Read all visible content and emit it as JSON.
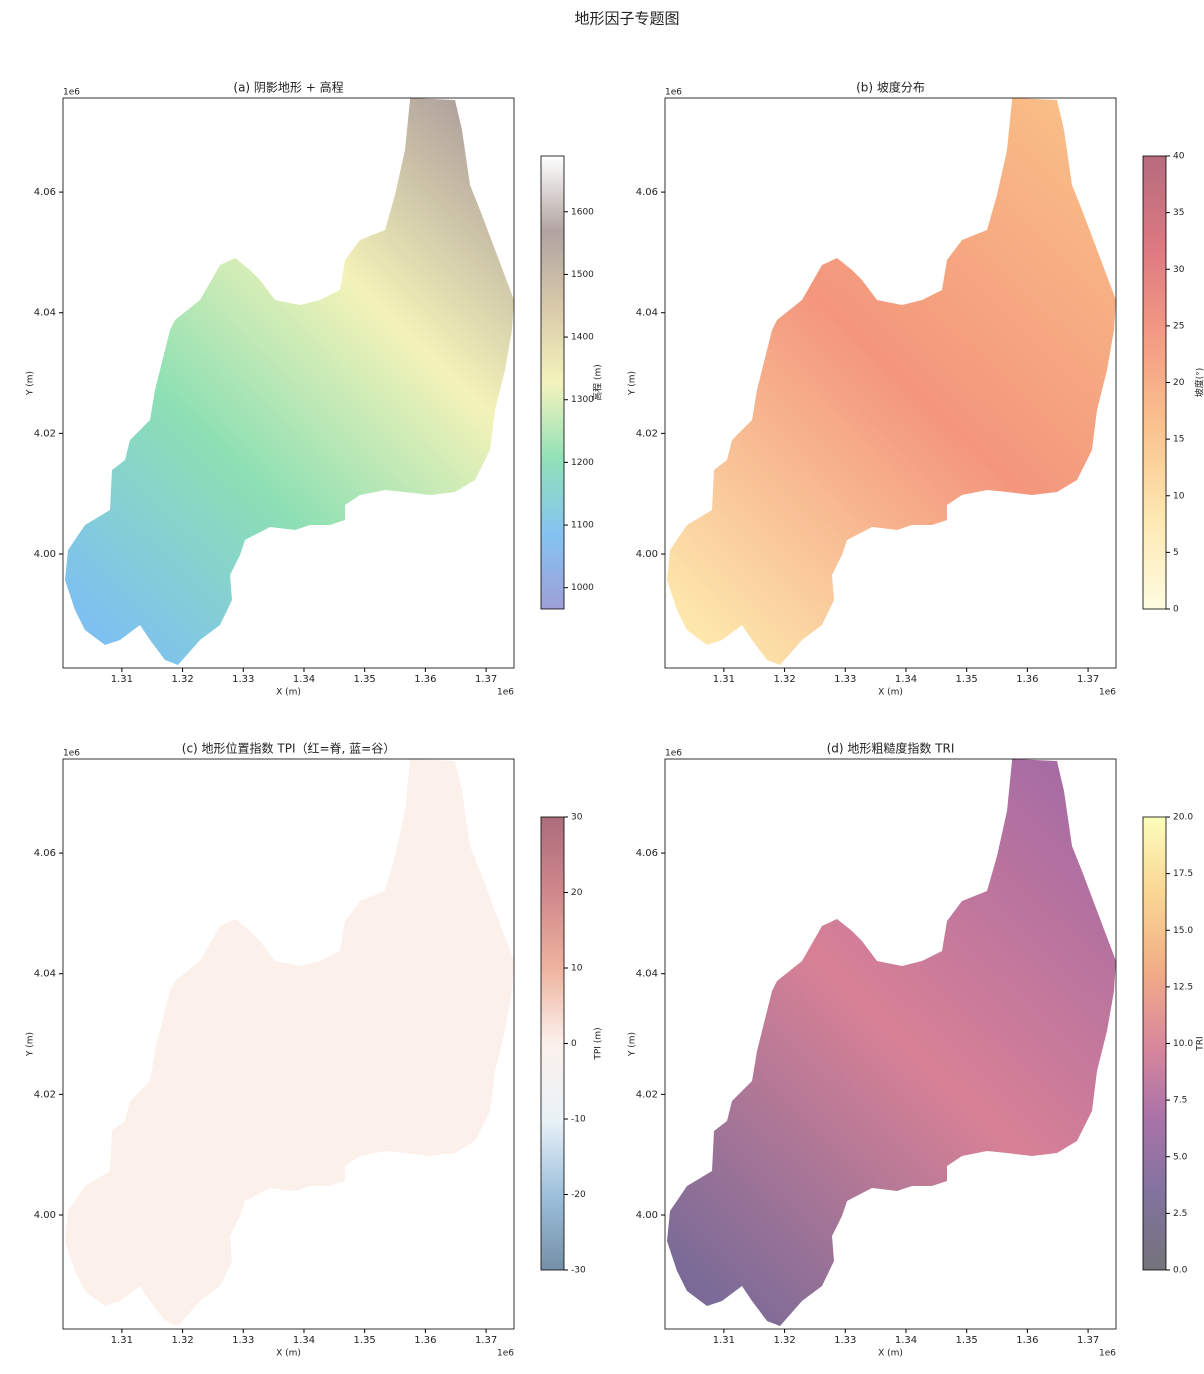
{
  "title": "地形因子专题图",
  "chart_data": [
    {
      "type": "raster",
      "title": "(a) 阴影地形 + 高程",
      "xlabel": "X (m)",
      "ylabel": "Y (m)",
      "x_offset": "1e6",
      "y_offset": "1e6",
      "xlim": [
        1300300,
        1374600
      ],
      "ylim": [
        3981100,
        4075600
      ],
      "xticks": [
        {
          "value": 1310000,
          "label": "1.31"
        },
        {
          "value": 1320000,
          "label": "1.32"
        },
        {
          "value": 1330000,
          "label": "1.33"
        },
        {
          "value": 1340000,
          "label": "1.34"
        },
        {
          "value": 1350000,
          "label": "1.35"
        },
        {
          "value": 1360000,
          "label": "1.36"
        },
        {
          "value": 1370000,
          "label": "1.37"
        }
      ],
      "yticks": [
        {
          "value": 4000000,
          "label": "4.00"
        },
        {
          "value": 4020000,
          "label": "4.02"
        },
        {
          "value": 4040000,
          "label": "4.04"
        },
        {
          "value": 4060000,
          "label": "4.06"
        }
      ],
      "colorbar": {
        "label": "高程 (m)",
        "lim": [
          966,
          1689
        ],
        "ticks": [
          1000,
          1100,
          1200,
          1300,
          1400,
          1500,
          1600
        ],
        "colors": [
          "#8c8fd0",
          "#6fb9f0",
          "#7fdcab",
          "#f3f1b0",
          "#d1c09a",
          "#a39390",
          "#ffffff"
        ]
      }
    },
    {
      "type": "raster",
      "title": "(b) 坡度分布",
      "xlabel": "X (m)",
      "ylabel": "Y (m)",
      "x_offset": "1e6",
      "y_offset": "1e6",
      "xlim": [
        1300300,
        1374600
      ],
      "ylim": [
        3981100,
        4075600
      ],
      "xticks": [
        {
          "value": 1310000,
          "label": "1.31"
        },
        {
          "value": 1320000,
          "label": "1.32"
        },
        {
          "value": 1330000,
          "label": "1.33"
        },
        {
          "value": 1340000,
          "label": "1.34"
        },
        {
          "value": 1350000,
          "label": "1.35"
        },
        {
          "value": 1360000,
          "label": "1.36"
        },
        {
          "value": 1370000,
          "label": "1.37"
        }
      ],
      "yticks": [
        {
          "value": 4000000,
          "label": "4.00"
        },
        {
          "value": 4020000,
          "label": "4.02"
        },
        {
          "value": 4040000,
          "label": "4.04"
        },
        {
          "value": 4060000,
          "label": "4.06"
        }
      ],
      "colorbar": {
        "label": "坡度(°)",
        "lim": [
          0,
          40
        ],
        "ticks": [
          0,
          5,
          10,
          15,
          20,
          25,
          30,
          35,
          40
        ],
        "colors": [
          "#fefbdb",
          "#fde4a3",
          "#f9b87a",
          "#f28a6e",
          "#d6616b",
          "#a95167"
        ]
      }
    },
    {
      "type": "raster",
      "title": "(c) 地形位置指数 TPI（红=脊, 蓝=谷）",
      "xlabel": "X (m)",
      "ylabel": "Y (m)",
      "x_offset": "1e6",
      "y_offset": "1e6",
      "xlim": [
        1300300,
        1374600
      ],
      "ylim": [
        3981100,
        4075600
      ],
      "xticks": [
        {
          "value": 1310000,
          "label": "1.31"
        },
        {
          "value": 1320000,
          "label": "1.32"
        },
        {
          "value": 1330000,
          "label": "1.33"
        },
        {
          "value": 1340000,
          "label": "1.34"
        },
        {
          "value": 1350000,
          "label": "1.35"
        },
        {
          "value": 1360000,
          "label": "1.36"
        },
        {
          "value": 1370000,
          "label": "1.37"
        }
      ],
      "yticks": [
        {
          "value": 4000000,
          "label": "4.00"
        },
        {
          "value": 4020000,
          "label": "4.02"
        },
        {
          "value": 4040000,
          "label": "4.04"
        },
        {
          "value": 4060000,
          "label": "4.06"
        }
      ],
      "colorbar": {
        "label": "TPI (m)",
        "lim": [
          -30,
          30
        ],
        "ticks": [
          -30,
          -20,
          -10,
          0,
          10,
          20,
          30
        ],
        "colors": [
          "#5c7c99",
          "#8cb5d6",
          "#e6f0f6",
          "#fbeee8",
          "#eba58d",
          "#c77277",
          "#9e5365"
        ]
      }
    },
    {
      "type": "raster",
      "title": "(d) 地形粗糙度指数 TRI",
      "xlabel": "X (m)",
      "ylabel": "Y (m)",
      "x_offset": "1e6",
      "y_offset": "1e6",
      "xlim": [
        1300300,
        1374600
      ],
      "ylim": [
        3981100,
        4075600
      ],
      "xticks": [
        {
          "value": 1310000,
          "label": "1.31"
        },
        {
          "value": 1320000,
          "label": "1.32"
        },
        {
          "value": 1330000,
          "label": "1.33"
        },
        {
          "value": 1340000,
          "label": "1.34"
        },
        {
          "value": 1350000,
          "label": "1.35"
        },
        {
          "value": 1360000,
          "label": "1.36"
        },
        {
          "value": 1370000,
          "label": "1.37"
        }
      ],
      "yticks": [
        {
          "value": 4000000,
          "label": "4.00"
        },
        {
          "value": 4020000,
          "label": "4.02"
        },
        {
          "value": 4040000,
          "label": "4.04"
        },
        {
          "value": 4060000,
          "label": "4.06"
        }
      ],
      "colorbar": {
        "label": "TRI",
        "lim": [
          0,
          20
        ],
        "ticks": [
          {
            "value": 0,
            "label": "0.0"
          },
          2.5,
          {
            "value": 5,
            "label": "5.0"
          },
          7.5,
          {
            "value": 10,
            "label": "10.0"
          },
          12.5,
          {
            "value": 15,
            "label": "15.0"
          },
          17.5,
          {
            "value": 20,
            "label": "20.0"
          }
        ],
        "colors": [
          "#5c5a63",
          "#6a5a8c",
          "#9a5a9a",
          "#d4738a",
          "#f0a070",
          "#f8d080",
          "#fcfcaf"
        ]
      }
    }
  ]
}
